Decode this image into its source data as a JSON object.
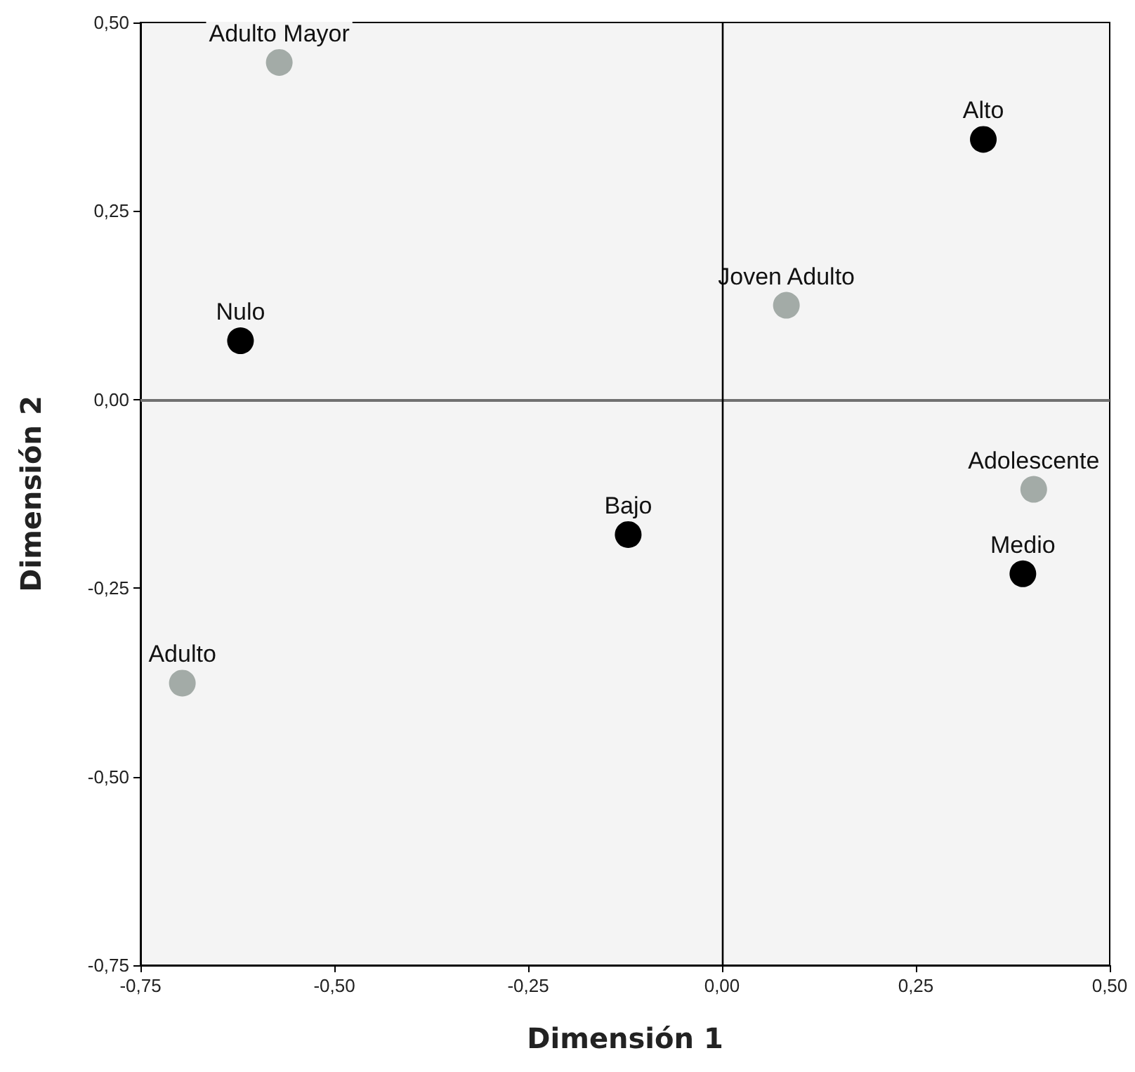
{
  "chart_data": {
    "type": "scatter",
    "xlabel": "Dimensión 1",
    "ylabel": "Dimensión 2",
    "series": [
      {
        "color": "#000000",
        "x": [
          0.337,
          -0.621,
          -0.121,
          0.388
        ],
        "values": [
          0.345,
          0.078,
          -0.179,
          -0.231
        ]
      },
      {
        "color": "#a3aba7",
        "x": [
          -0.571,
          0.083,
          0.402,
          -0.696
        ],
        "values": [
          0.447,
          0.125,
          -0.119,
          -0.376
        ]
      }
    ],
    "xlim": [
      -0.75,
      0.5
    ],
    "ylim": [
      -0.75,
      0.5
    ],
    "xticks": [
      {
        "value": -0.75,
        "label": "-0,75"
      },
      {
        "value": -0.5,
        "label": "-0,50"
      },
      {
        "value": -0.25,
        "label": "-0,25"
      },
      {
        "value": 0,
        "label": "0,00"
      },
      {
        "value": 0.25,
        "label": "0,25"
      },
      {
        "value": 0.5,
        "label": "0,50"
      }
    ],
    "yticks": [
      {
        "value": -0.75,
        "label": "-0,75"
      },
      {
        "value": -0.5,
        "label": "-0,50"
      },
      {
        "value": -0.25,
        "label": "-0,25"
      },
      {
        "value": 0,
        "label": "0,00"
      },
      {
        "value": 0.25,
        "label": "0,25"
      },
      {
        "value": 0.5,
        "label": "0,50"
      }
    ],
    "ref_lines": [
      {
        "axis": "y",
        "value": 0,
        "color": "#707070"
      },
      {
        "axis": "x",
        "value": 0,
        "color": "#000000"
      }
    ],
    "annotations": [
      {
        "text": "Alto",
        "x": 0.337,
        "y": 0.345
      },
      {
        "text": "Nulo",
        "x": -0.621,
        "y": 0.078
      },
      {
        "text": "Bajo",
        "x": -0.121,
        "y": -0.179
      },
      {
        "text": "Medio",
        "x": 0.388,
        "y": -0.231
      },
      {
        "text": "Adulto Mayor",
        "x": -0.571,
        "y": 0.447
      },
      {
        "text": "Joven Adulto",
        "x": 0.083,
        "y": 0.125
      },
      {
        "text": "Adolescente",
        "x": 0.402,
        "y": -0.119
      },
      {
        "text": "Adulto",
        "x": -0.696,
        "y": -0.376
      }
    ],
    "grid": false,
    "marker": "circle"
  }
}
